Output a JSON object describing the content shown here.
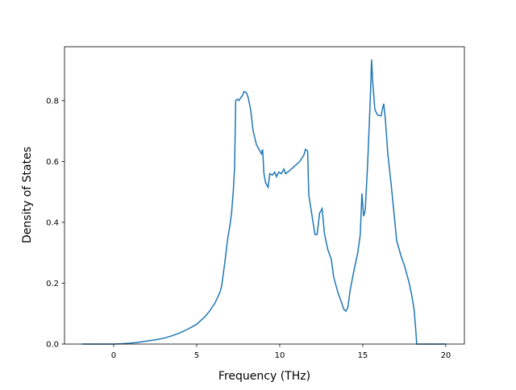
{
  "chart_data": {
    "type": "line",
    "x_label": "Frequency (THz)",
    "y_label": "Density of States",
    "xlim": [
      -2.96,
      21.12
    ],
    "ylim": [
      0,
      0.977
    ],
    "xticks": [
      0,
      5,
      10,
      15,
      20
    ],
    "yticks": [
      {
        "value": 0,
        "label": "0.0"
      },
      0.2,
      0.4,
      0.6,
      0.8
    ],
    "series": [
      {
        "color": "#1f77b4",
        "x": [
          -1.9,
          -1,
          0,
          0.5,
          1,
          1.5,
          2,
          2.5,
          3,
          3.5,
          4,
          4.5,
          5,
          5.5,
          5.8,
          6.1,
          6.4,
          6.5,
          6.7,
          6.85,
          7.0,
          7.1,
          7.2,
          7.28,
          7.35,
          7.45,
          7.55,
          7.65,
          7.75,
          7.85,
          8.0,
          8.1,
          8.25,
          8.4,
          8.6,
          8.8,
          8.9,
          8.97,
          9.05,
          9.15,
          9.3,
          9.4,
          9.55,
          9.7,
          9.8,
          9.95,
          10.1,
          10.25,
          10.35,
          10.6,
          10.9,
          11.2,
          11.45,
          11.55,
          11.68,
          11.75,
          11.95,
          12.12,
          12.25,
          12.4,
          12.55,
          12.7,
          12.9,
          13.1,
          13.25,
          13.5,
          13.7,
          13.85,
          13.98,
          14.1,
          14.25,
          14.5,
          14.7,
          14.85,
          14.95,
          15.05,
          15.15,
          15.3,
          15.45,
          15.53,
          15.6,
          15.73,
          15.9,
          16.1,
          16.26,
          16.36,
          16.5,
          16.7,
          16.9,
          17.04,
          17.3,
          17.5,
          17.8,
          17.95,
          18.1,
          18.2,
          18.25,
          19,
          20
        ],
        "values": [
          0,
          0,
          0,
          0.001,
          0.003,
          0.006,
          0.01,
          0.014,
          0.019,
          0.027,
          0.037,
          0.05,
          0.065,
          0.09,
          0.11,
          0.135,
          0.17,
          0.19,
          0.27,
          0.34,
          0.39,
          0.43,
          0.5,
          0.58,
          0.8,
          0.805,
          0.8,
          0.81,
          0.815,
          0.83,
          0.825,
          0.81,
          0.77,
          0.7,
          0.655,
          0.635,
          0.625,
          0.64,
          0.56,
          0.53,
          0.515,
          0.56,
          0.555,
          0.565,
          0.55,
          0.565,
          0.56,
          0.575,
          0.56,
          0.57,
          0.585,
          0.6,
          0.62,
          0.64,
          0.635,
          0.49,
          0.42,
          0.36,
          0.36,
          0.43,
          0.445,
          0.36,
          0.31,
          0.28,
          0.22,
          0.17,
          0.14,
          0.115,
          0.108,
          0.12,
          0.18,
          0.25,
          0.3,
          0.36,
          0.495,
          0.42,
          0.44,
          0.6,
          0.8,
          0.935,
          0.86,
          0.77,
          0.752,
          0.75,
          0.79,
          0.74,
          0.63,
          0.53,
          0.42,
          0.34,
          0.29,
          0.26,
          0.2,
          0.16,
          0.11,
          0.04,
          0,
          0,
          0
        ]
      }
    ]
  }
}
